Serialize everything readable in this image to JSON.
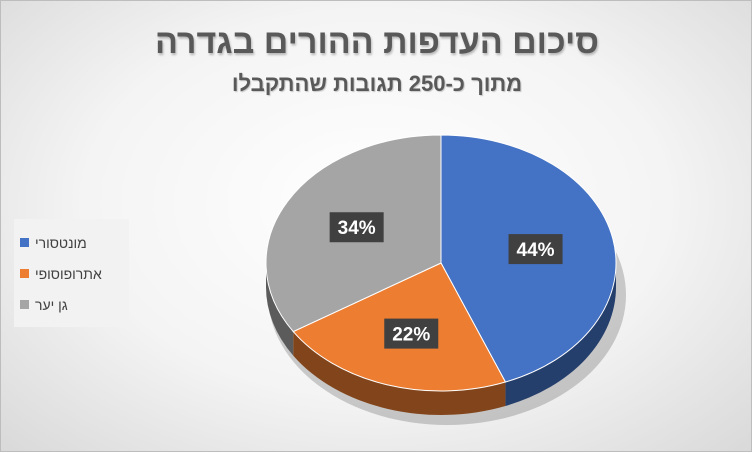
{
  "chart_data": {
    "type": "pie",
    "title": "סיכום העדפות ההורים בגדרה",
    "subtitle": "מתוך כ-250 תגובות שהתקבלו",
    "categories": [
      "מונטסורי",
      "אתרופוסופי",
      "גן יער"
    ],
    "values": [
      44,
      22,
      34
    ],
    "data_labels": [
      "44%",
      "22%",
      "34%"
    ],
    "colors": [
      "#4472c4",
      "#ed7d31",
      "#a5a5a5"
    ],
    "legend_position": "left",
    "style": "3d"
  }
}
